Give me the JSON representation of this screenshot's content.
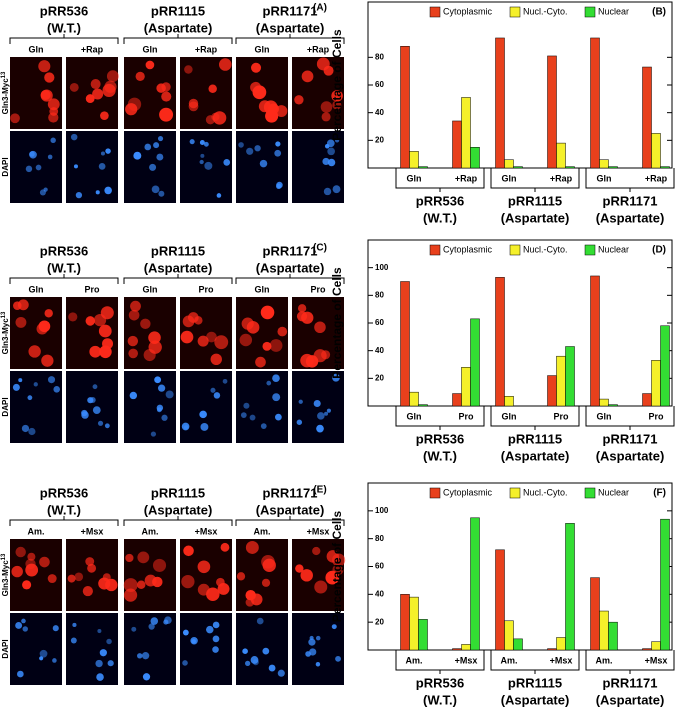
{
  "image_panels": [
    {
      "label": "(A)",
      "strains": [
        [
          "pRR536",
          "(W.T.)"
        ],
        [
          "pRR1115",
          "(Aspartate)"
        ],
        [
          "pRR1171",
          "(Aspartate)"
        ]
      ],
      "conditions": [
        "Gln",
        "+Rap"
      ],
      "row_labels": [
        [
          "Gln3-Myc",
          "13"
        ],
        [
          "DAPI"
        ]
      ]
    },
    {
      "label": "(C)",
      "strains": [
        [
          "pRR536",
          "(W.T.)"
        ],
        [
          "pRR1115",
          "(Aspartate)"
        ],
        [
          "pRR1171",
          "(Aspartate)"
        ]
      ],
      "conditions": [
        "Gln",
        "Pro"
      ],
      "row_labels": [
        [
          "Gln3-Myc",
          "13"
        ],
        [
          "DAPI"
        ]
      ]
    },
    {
      "label": "(E)",
      "strains": [
        [
          "pRR536",
          "(W.T.)"
        ],
        [
          "pRR1115",
          "(Aspartate)"
        ],
        [
          "pRR1171",
          "(Aspartate)"
        ]
      ],
      "conditions": [
        "Am.",
        "+Msx"
      ],
      "row_labels": [
        [
          "Gln3-Myc",
          "13"
        ],
        [
          "DAPI"
        ]
      ]
    }
  ],
  "chart_data": [
    {
      "type": "bar",
      "panel_label": "(B)",
      "y_label": "Percentage of Cells",
      "categories": [
        "Gln",
        "+Rap",
        "Gln",
        "+Rap",
        "Gln",
        "+Rap"
      ],
      "groups": [
        [
          "pRR536",
          "(W.T.)"
        ],
        [
          "pRR1115",
          "(Aspartate)"
        ],
        [
          "pRR1171",
          "(Aspartate)"
        ]
      ],
      "series": [
        {
          "name": "Cytoplasmic",
          "color": "#e8401c",
          "values": [
            88,
            34,
            94,
            81,
            94,
            73
          ]
        },
        {
          "name": "Nucl.-Cyto.",
          "color": "#f5f02a",
          "values": [
            12,
            51,
            6,
            18,
            6,
            25
          ]
        },
        {
          "name": "Nuclear",
          "color": "#33dd33",
          "values": [
            1,
            15,
            1,
            1,
            1,
            1
          ]
        }
      ],
      "ylim": [
        0,
        120
      ],
      "yticks": [
        20,
        40,
        60,
        80
      ],
      "legend": "top"
    },
    {
      "type": "bar",
      "panel_label": "(D)",
      "y_label": "Percentage of Cells",
      "categories": [
        "Gln",
        "Pro",
        "Gln",
        "Pro",
        "Gln",
        "Pro"
      ],
      "groups": [
        [
          "pRR536",
          "(W.T.)"
        ],
        [
          "pRR1115",
          "(Aspartate)"
        ],
        [
          "pRR1171",
          "(Aspartate)"
        ]
      ],
      "series": [
        {
          "name": "Cytoplasmic",
          "color": "#e8401c",
          "values": [
            90,
            9,
            93,
            22,
            94,
            9
          ]
        },
        {
          "name": "Nucl.-Cyto.",
          "color": "#f5f02a",
          "values": [
            10,
            28,
            7,
            36,
            5,
            33
          ]
        },
        {
          "name": "Nuclear",
          "color": "#33dd33",
          "values": [
            1,
            63,
            0,
            43,
            1,
            58
          ]
        }
      ],
      "ylim": [
        0,
        120
      ],
      "yticks": [
        20,
        40,
        60,
        80,
        100
      ],
      "legend": "top"
    },
    {
      "type": "bar",
      "panel_label": "(F)",
      "y_label": "Percentage of Cells",
      "categories": [
        "Am.",
        "+Msx",
        "Am.",
        "+Msx",
        "Am.",
        "+Msx"
      ],
      "groups": [
        [
          "pRR536",
          "(W.T.)"
        ],
        [
          "pRR1115",
          "(Aspartate)"
        ],
        [
          "pRR1171",
          "(Aspartate)"
        ]
      ],
      "series": [
        {
          "name": "Cytoplasmic",
          "color": "#e8401c",
          "values": [
            40,
            1,
            72,
            1,
            52,
            1
          ]
        },
        {
          "name": "Nucl.-Cyto.",
          "color": "#f5f02a",
          "values": [
            38,
            4,
            21,
            9,
            28,
            6
          ]
        },
        {
          "name": "Nuclear",
          "color": "#33dd33",
          "values": [
            22,
            95,
            8,
            91,
            20,
            94
          ]
        }
      ],
      "ylim": [
        0,
        120
      ],
      "yticks": [
        20,
        40,
        60,
        80,
        100
      ],
      "legend": "top"
    }
  ]
}
